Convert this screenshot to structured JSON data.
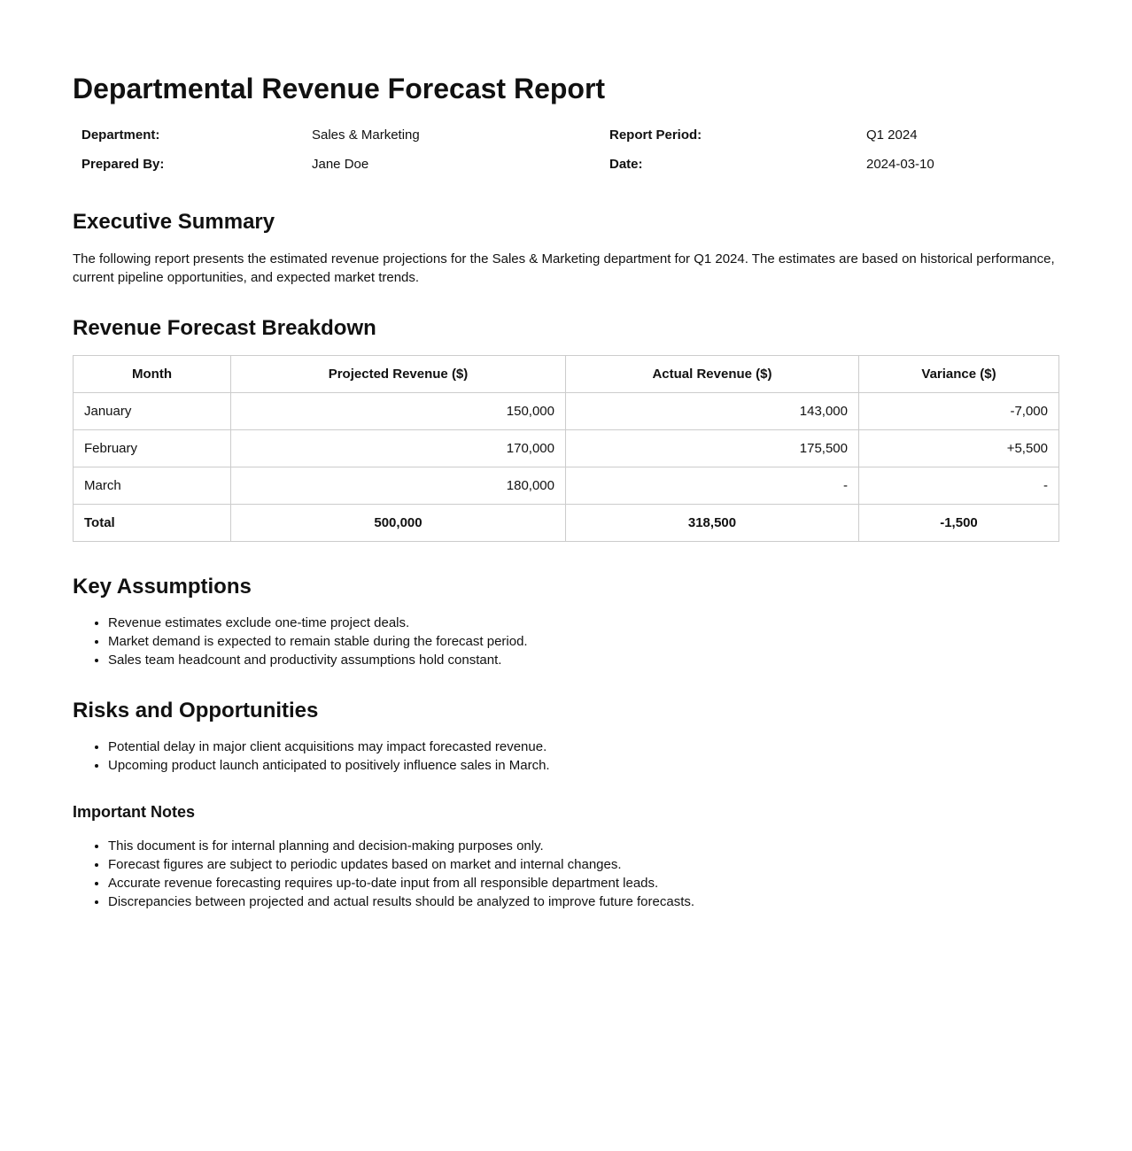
{
  "header": {
    "title": "Departmental Revenue Forecast Report"
  },
  "meta": {
    "rows": [
      [
        "Department:",
        "Sales & Marketing",
        "Report Period:",
        "Q1 2024"
      ],
      [
        "Prepared By:",
        "Jane Doe",
        "Date:",
        "2024-03-10"
      ]
    ]
  },
  "summary": {
    "heading": "Executive Summary",
    "text": "The following report presents the estimated revenue projections for the Sales & Marketing department for Q1 2024. The estimates are based on historical performance, current pipeline opportunities, and expected market trends."
  },
  "table": {
    "heading": "Revenue Forecast Breakdown",
    "columns": [
      "Month",
      "Projected Revenue ($)",
      "Actual Revenue ($)",
      "Variance ($)"
    ],
    "rows": [
      [
        "January",
        "150,000",
        "143,000",
        "-7,000"
      ],
      [
        "February",
        "170,000",
        "175,500",
        "+5,500"
      ],
      [
        "March",
        "180,000",
        "-",
        "-"
      ]
    ],
    "total": [
      "Total",
      "500,000",
      "318,500",
      "-1,500"
    ]
  },
  "assumptions": {
    "heading": "Key Assumptions",
    "items": [
      "Revenue estimates exclude one-time project deals.",
      "Market demand is expected to remain stable during the forecast period.",
      "Sales team headcount and productivity assumptions hold constant."
    ]
  },
  "risks": {
    "heading": "Risks and Opportunities",
    "items": [
      "Potential delay in major client acquisitions may impact forecasted revenue.",
      "Upcoming product launch anticipated to positively influence sales in March."
    ]
  },
  "notes": {
    "heading": "Important Notes",
    "items": [
      "This document is for internal planning and decision-making purposes only.",
      "Forecast figures are subject to periodic updates based on market and internal changes.",
      "Accurate revenue forecasting requires up-to-date input from all responsible department leads.",
      "Discrepancies between projected and actual results should be analyzed to improve future forecasts."
    ]
  }
}
